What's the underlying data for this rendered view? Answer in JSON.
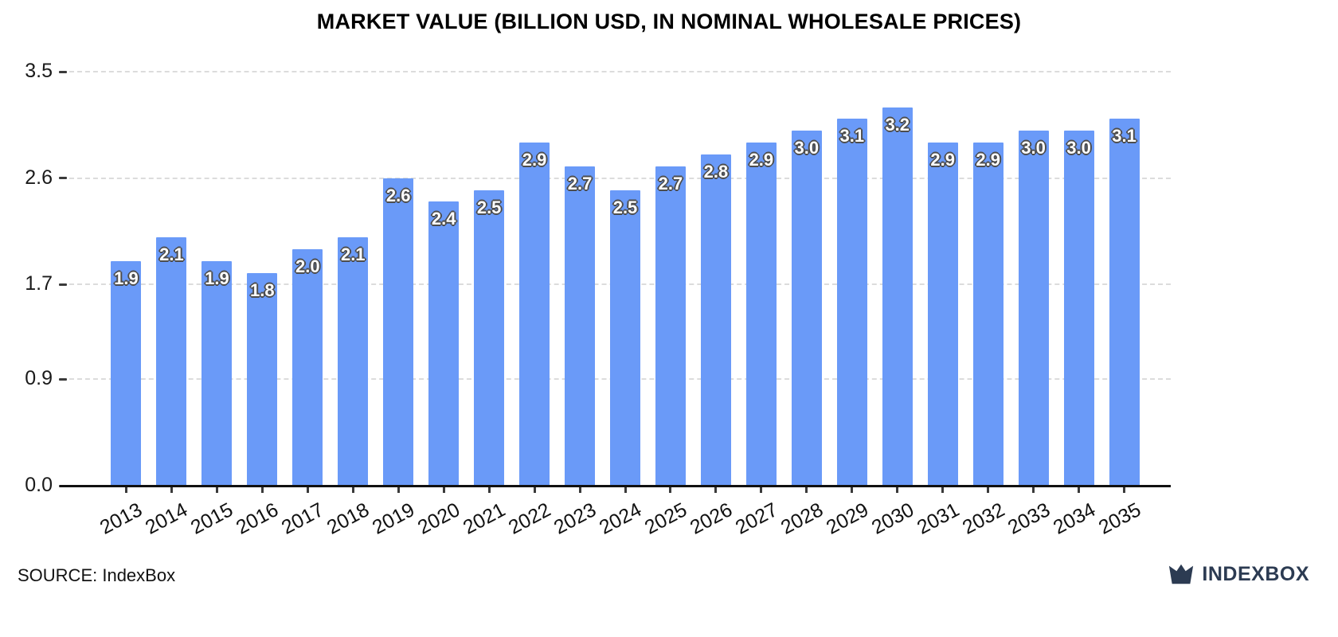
{
  "source": "SOURCE: IndexBox",
  "logo": {
    "index": "INDEX",
    "box": "BOX"
  },
  "chart_data": {
    "type": "bar",
    "title": "MARKET VALUE (BILLION USD, IN NOMINAL WHOLESALE PRICES)",
    "categories": [
      "2013",
      "2014",
      "2015",
      "2016",
      "2017",
      "2018",
      "2019",
      "2020",
      "2021",
      "2022",
      "2023",
      "2024",
      "2025",
      "2026",
      "2027",
      "2028",
      "2029",
      "2030",
      "2031",
      "2032",
      "2033",
      "2034",
      "2035"
    ],
    "values": [
      1.9,
      2.1,
      1.9,
      1.8,
      2.0,
      2.1,
      2.6,
      2.4,
      2.5,
      2.9,
      2.7,
      2.5,
      2.7,
      2.8,
      2.9,
      3.0,
      3.1,
      3.2,
      2.9,
      2.9,
      3.0,
      3.0,
      3.1
    ],
    "xlabel": "",
    "ylabel": "",
    "ylim": [
      0.0,
      3.5
    ],
    "yticks": [
      0.0,
      0.9,
      1.7,
      2.6,
      3.5
    ],
    "bar_color": "#6a9af8",
    "value_labels": true,
    "grid": "horizontal-dashed",
    "legend": "none"
  }
}
